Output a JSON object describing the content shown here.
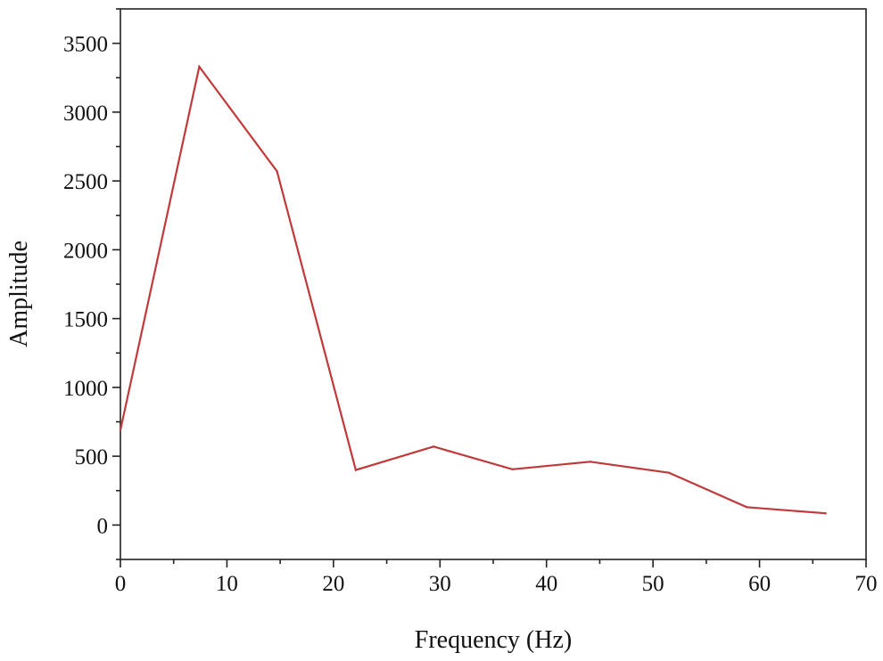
{
  "chart_data": {
    "type": "line",
    "title": "",
    "xlabel": "Frequency (Hz)",
    "ylabel": "Amplitude",
    "xlim": [
      0,
      70
    ],
    "ylim": [
      -250,
      3750
    ],
    "x_ticks": [
      0,
      10,
      20,
      30,
      40,
      50,
      60,
      70
    ],
    "y_ticks": [
      0,
      500,
      1000,
      1500,
      2000,
      2500,
      3000,
      3500
    ],
    "grid": false,
    "legend": "none",
    "series": [
      {
        "color": "#c0393b",
        "x": [
          0,
          7.4,
          14.7,
          22.1,
          29.4,
          36.8,
          44.1,
          51.5,
          58.8,
          66.2
        ],
        "y": [
          690,
          3330,
          2570,
          400,
          570,
          405,
          460,
          380,
          130,
          85
        ]
      }
    ]
  }
}
